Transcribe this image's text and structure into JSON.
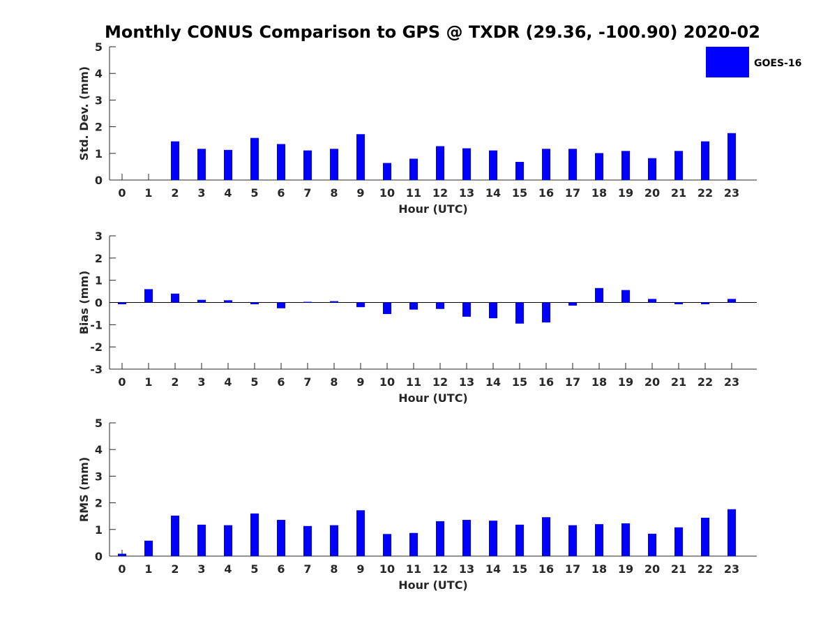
{
  "title": "Monthly CONUS Comparison to GPS @ TXDR (29.36, -100.90) 2020-02",
  "bar_color": "#0000ff",
  "chart_data": [
    {
      "type": "bar",
      "name": "std-dev",
      "ylabel": "Std. Dev. (mm)",
      "xlabel": "Hour (UTC)",
      "ylim": [
        0,
        5
      ],
      "yticks": [
        "0",
        "1",
        "2",
        "3",
        "4",
        "5"
      ],
      "ytick_values": [
        0,
        1,
        2,
        3,
        4,
        5
      ],
      "categories": [
        "0",
        "1",
        "2",
        "3",
        "4",
        "5",
        "6",
        "7",
        "8",
        "9",
        "10",
        "11",
        "12",
        "13",
        "14",
        "15",
        "16",
        "17",
        "18",
        "19",
        "20",
        "21",
        "22",
        "23"
      ],
      "series": [
        {
          "name": "GOES-16",
          "values": [
            0,
            0,
            1.45,
            1.17,
            1.13,
            1.58,
            1.35,
            1.11,
            1.17,
            1.72,
            0.64,
            0.8,
            1.27,
            1.19,
            1.11,
            0.68,
            1.17,
            1.17,
            1.01,
            1.09,
            0.82,
            1.09,
            1.45,
            1.76
          ]
        }
      ],
      "legend": {
        "label": "GOES-16",
        "placement": "top-right"
      }
    },
    {
      "type": "bar",
      "name": "bias",
      "ylabel": "Bias (mm)",
      "xlabel": "Hour (UTC)",
      "ylim": [
        -3,
        3
      ],
      "yticks": [
        "-3",
        "-2",
        "-1",
        "0",
        "1",
        "2",
        "3"
      ],
      "ytick_values": [
        -3,
        -2,
        -1,
        0,
        1,
        2,
        3
      ],
      "zero_line": true,
      "categories": [
        "0",
        "1",
        "2",
        "3",
        "4",
        "5",
        "6",
        "7",
        "8",
        "9",
        "10",
        "11",
        "12",
        "13",
        "14",
        "15",
        "16",
        "17",
        "18",
        "19",
        "20",
        "21",
        "22",
        "23"
      ],
      "series": [
        {
          "name": "GOES-16",
          "values": [
            -0.08,
            0.6,
            0.4,
            0.12,
            0.1,
            -0.08,
            -0.26,
            0.03,
            0.06,
            -0.21,
            -0.52,
            -0.32,
            -0.29,
            -0.64,
            -0.71,
            -0.95,
            -0.9,
            -0.14,
            0.65,
            0.56,
            0.16,
            -0.08,
            -0.08,
            0.16
          ]
        }
      ]
    },
    {
      "type": "bar",
      "name": "rms",
      "ylabel": "RMS (mm)",
      "xlabel": "Hour (UTC)",
      "ylim": [
        0,
        5
      ],
      "yticks": [
        "0",
        "1",
        "2",
        "3",
        "4",
        "5"
      ],
      "ytick_values": [
        0,
        1,
        2,
        3,
        4,
        5
      ],
      "categories": [
        "0",
        "1",
        "2",
        "3",
        "4",
        "5",
        "6",
        "7",
        "8",
        "9",
        "10",
        "11",
        "12",
        "13",
        "14",
        "15",
        "16",
        "17",
        "18",
        "19",
        "20",
        "21",
        "22",
        "23"
      ],
      "series": [
        {
          "name": "GOES-16",
          "values": [
            0.09,
            0.58,
            1.52,
            1.18,
            1.16,
            1.6,
            1.36,
            1.13,
            1.16,
            1.72,
            0.83,
            0.87,
            1.31,
            1.36,
            1.33,
            1.18,
            1.46,
            1.16,
            1.2,
            1.23,
            0.84,
            1.08,
            1.44,
            1.76
          ]
        }
      ]
    }
  ]
}
